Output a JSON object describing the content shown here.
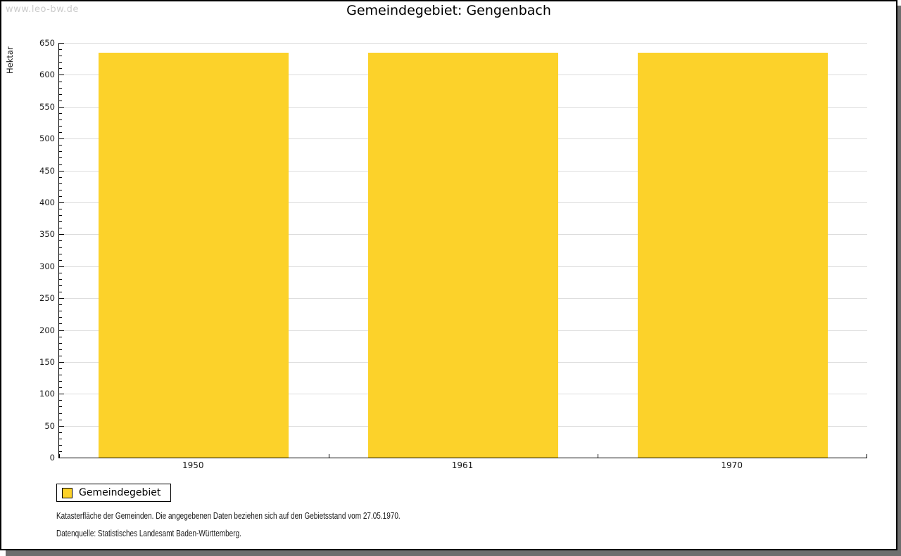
{
  "watermark": "www.leo-bw.de",
  "title": "Gemeindegebiet: Gengenbach",
  "axis": {
    "y_label": "Hektar"
  },
  "legend": {
    "items": [
      {
        "label": "Gemeindegebiet",
        "color": "#fcd22a"
      }
    ]
  },
  "notes": [
    "Katasterfläche der Gemeinden. Die angegebenen Daten beziehen sich auf den Gebietsstand vom 27.05.1970.",
    "Datenquelle: Statistisches Landesamt Baden-Württemberg."
  ],
  "chart_data": {
    "type": "bar",
    "title": "Gemeindegebiet: Gengenbach",
    "categories": [
      "1950",
      "1961",
      "1970"
    ],
    "series": [
      {
        "name": "Gemeindegebiet",
        "color": "#fcd22a",
        "values": [
          635,
          635,
          635
        ]
      }
    ],
    "xlabel": "",
    "ylabel": "Hektar",
    "ylim": [
      0,
      650
    ],
    "y_major_step": 50,
    "y_minor_step": 10,
    "grid": true,
    "gridline_color": "#dcdcdc",
    "legend_position": "bottom-left"
  }
}
